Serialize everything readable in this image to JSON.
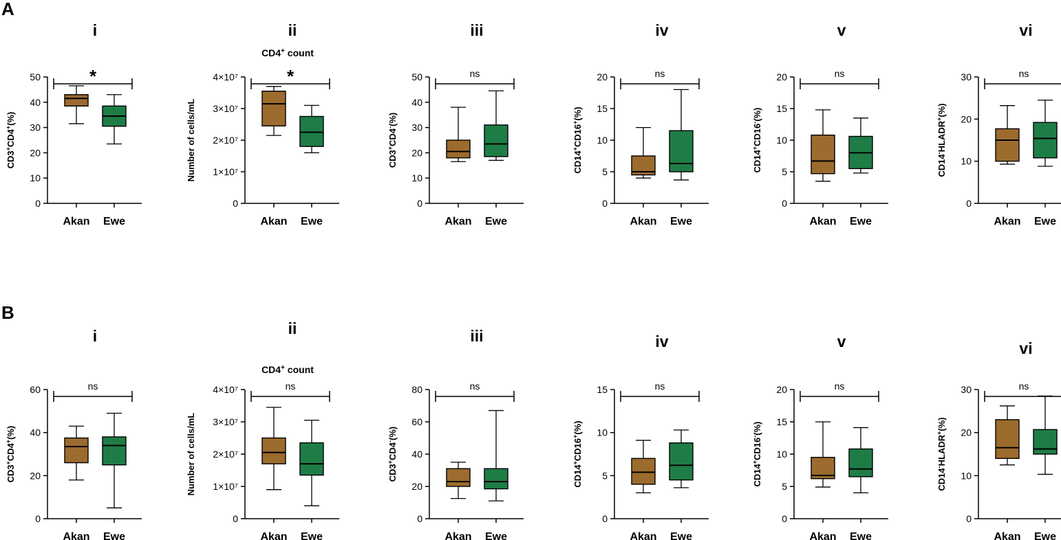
{
  "panel_labels": [
    "A",
    "B"
  ],
  "colors": {
    "Akan": "#9c6b2e",
    "Ewe": "#1e7d46",
    "line": "#000000"
  },
  "chart_data": [
    {
      "panel": "A",
      "subtitle": "i",
      "type": "boxplot",
      "title": "",
      "ylabel": "CD3+CD4+(%)",
      "ylabel_parts": [
        [
          "CD3",
          ""
        ],
        [
          "+",
          "sup"
        ],
        [
          "CD4",
          ""
        ],
        [
          "+",
          "sup"
        ],
        [
          "(%)",
          ""
        ]
      ],
      "ylim": [
        0,
        50
      ],
      "ticks": [
        0,
        10,
        20,
        30,
        40,
        50
      ],
      "tick_labels": [
        "0",
        "10",
        "20",
        "30",
        "40",
        "50"
      ],
      "categories": [
        "Akan",
        "Ewe"
      ],
      "significance": "*",
      "boxes": [
        {
          "min": 31.5,
          "q1": 38.5,
          "median": 41.5,
          "q3": 43,
          "max": 46.5
        },
        {
          "min": 23.5,
          "q1": 30.5,
          "median": 34.5,
          "q3": 38.5,
          "max": 43
        }
      ]
    },
    {
      "panel": "A",
      "subtitle": "ii",
      "type": "boxplot",
      "title": "CD4+ count",
      "title_parts": [
        [
          "CD4",
          ""
        ],
        [
          "+",
          "sup"
        ],
        [
          " count",
          ""
        ]
      ],
      "ylabel": "Number of cells/mL",
      "ylabel_parts": [
        [
          "Number of cells/mL",
          ""
        ]
      ],
      "ylim": [
        0,
        40000000
      ],
      "ticks": [
        0,
        10000000,
        20000000,
        30000000,
        40000000
      ],
      "tick_labels": [
        "0",
        "1×10⁷",
        "2×10⁷",
        "3×10⁷",
        "4×10⁷"
      ],
      "categories": [
        "Akan",
        "Ewe"
      ],
      "significance": "*",
      "boxes": [
        {
          "min": 21500000,
          "q1": 24500000,
          "median": 31500000,
          "q3": 35500000,
          "max": 37000000
        },
        {
          "min": 16000000,
          "q1": 18000000,
          "median": 22500000,
          "q3": 27500000,
          "max": 31000000
        }
      ]
    },
    {
      "panel": "A",
      "subtitle": "iii",
      "type": "boxplot",
      "title": "",
      "ylabel": "CD3+CD4-(%)",
      "ylabel_parts": [
        [
          "CD3",
          ""
        ],
        [
          "+",
          "sup"
        ],
        [
          "CD4",
          ""
        ],
        [
          "-",
          "sup"
        ],
        [
          "(%)",
          ""
        ]
      ],
      "ylim": [
        0,
        50
      ],
      "ticks": [
        0,
        10,
        20,
        30,
        40,
        50
      ],
      "tick_labels": [
        "0",
        "10",
        "20",
        "30",
        "40",
        "50"
      ],
      "categories": [
        "Akan",
        "Ewe"
      ],
      "significance": "ns",
      "boxes": [
        {
          "min": 16.5,
          "q1": 18,
          "median": 20.5,
          "q3": 25,
          "max": 38
        },
        {
          "min": 17,
          "q1": 18.5,
          "median": 23.5,
          "q3": 31,
          "max": 44.5
        }
      ]
    },
    {
      "panel": "A",
      "subtitle": "iv",
      "type": "boxplot",
      "title": "",
      "ylabel": "CD14+CD16+(%)",
      "ylabel_parts": [
        [
          "CD14",
          ""
        ],
        [
          "+",
          "sup"
        ],
        [
          "CD16",
          ""
        ],
        [
          "+",
          "sup"
        ],
        [
          "(%)",
          ""
        ]
      ],
      "ylim": [
        0,
        20
      ],
      "ticks": [
        0,
        5,
        10,
        15,
        20
      ],
      "tick_labels": [
        "0",
        "5",
        "10",
        "15",
        "20"
      ],
      "categories": [
        "Akan",
        "Ewe"
      ],
      "significance": "ns",
      "boxes": [
        {
          "min": 4,
          "q1": 4.5,
          "median": 5,
          "q3": 7.5,
          "max": 12
        },
        {
          "min": 3.7,
          "q1": 5,
          "median": 6.3,
          "q3": 11.5,
          "max": 18
        }
      ]
    },
    {
      "panel": "A",
      "subtitle": "v",
      "type": "boxplot",
      "title": "",
      "ylabel": "CD14+CD16-(%)",
      "ylabel_parts": [
        [
          "CD14",
          ""
        ],
        [
          "+",
          "sup"
        ],
        [
          "CD16",
          ""
        ],
        [
          "-",
          "sup"
        ],
        [
          "(%)",
          ""
        ]
      ],
      "ylim": [
        0,
        20
      ],
      "ticks": [
        0,
        5,
        10,
        15,
        20
      ],
      "tick_labels": [
        "0",
        "5",
        "10",
        "15",
        "20"
      ],
      "categories": [
        "Akan",
        "Ewe"
      ],
      "significance": "ns",
      "boxes": [
        {
          "min": 3.5,
          "q1": 4.7,
          "median": 6.7,
          "q3": 10.8,
          "max": 14.8
        },
        {
          "min": 4.8,
          "q1": 5.5,
          "median": 8,
          "q3": 10.6,
          "max": 13.5
        }
      ]
    },
    {
      "panel": "A",
      "subtitle": "vi",
      "type": "boxplot",
      "title": "",
      "ylabel": "CD14-HLADR+(%)",
      "ylabel_parts": [
        [
          "CD14",
          ""
        ],
        [
          "-",
          "sup"
        ],
        [
          "HLADR",
          ""
        ],
        [
          "+",
          "sup"
        ],
        [
          "(%)",
          ""
        ]
      ],
      "ylim": [
        0,
        30
      ],
      "ticks": [
        0,
        10,
        20,
        30
      ],
      "tick_labels": [
        "0",
        "10",
        "20",
        "30"
      ],
      "categories": [
        "Akan",
        "Ewe"
      ],
      "significance": "ns",
      "boxes": [
        {
          "min": 9.3,
          "q1": 10,
          "median": 15,
          "q3": 17.7,
          "max": 23.2
        },
        {
          "min": 8.8,
          "q1": 10.8,
          "median": 15.4,
          "q3": 19.2,
          "max": 24.5
        }
      ]
    },
    {
      "panel": "B",
      "subtitle": "i",
      "type": "boxplot",
      "title": "",
      "ylabel": "CD3+CD4+(%)",
      "ylabel_parts": [
        [
          "CD3",
          ""
        ],
        [
          "+",
          "sup"
        ],
        [
          "CD4",
          ""
        ],
        [
          "+",
          "sup"
        ],
        [
          "(%)",
          ""
        ]
      ],
      "ylim": [
        0,
        60
      ],
      "ticks": [
        0,
        20,
        40,
        60
      ],
      "tick_labels": [
        "0",
        "20",
        "40",
        "60"
      ],
      "categories": [
        "Akan",
        "Ewe"
      ],
      "significance": "ns",
      "boxes": [
        {
          "min": 18,
          "q1": 26,
          "median": 33.5,
          "q3": 37.5,
          "max": 43
        },
        {
          "min": 5,
          "q1": 25,
          "median": 34,
          "q3": 38,
          "max": 49
        }
      ]
    },
    {
      "panel": "B",
      "subtitle": "ii",
      "type": "boxplot",
      "title": "CD4+ count",
      "title_parts": [
        [
          "CD4",
          ""
        ],
        [
          "+",
          "sup"
        ],
        [
          " count",
          ""
        ]
      ],
      "ylabel": "Number of cells/mL",
      "ylabel_parts": [
        [
          "Number of cells/mL",
          ""
        ]
      ],
      "ylim": [
        0,
        40000000
      ],
      "ticks": [
        0,
        10000000,
        20000000,
        30000000,
        40000000
      ],
      "tick_labels": [
        "0",
        "1×10⁷",
        "2×10⁷",
        "3×10⁷",
        "4×10⁷"
      ],
      "categories": [
        "Akan",
        "Ewe"
      ],
      "significance": "ns",
      "boxes": [
        {
          "min": 9000000,
          "q1": 17000000,
          "median": 20500000,
          "q3": 25000000,
          "max": 34500000
        },
        {
          "min": 4000000,
          "q1": 13500000,
          "median": 17000000,
          "q3": 23500000,
          "max": 30500000
        }
      ]
    },
    {
      "panel": "B",
      "subtitle": "iii",
      "type": "boxplot",
      "title": "",
      "ylabel": "CD3+CD4-(%)",
      "ylabel_parts": [
        [
          "CD3",
          ""
        ],
        [
          "+",
          "sup"
        ],
        [
          "CD4",
          ""
        ],
        [
          "-",
          "sup"
        ],
        [
          "(%)",
          ""
        ]
      ],
      "ylim": [
        0,
        80
      ],
      "ticks": [
        0,
        20,
        40,
        60,
        80
      ],
      "tick_labels": [
        "0",
        "20",
        "40",
        "60",
        "80"
      ],
      "categories": [
        "Akan",
        "Ewe"
      ],
      "significance": "ns",
      "boxes": [
        {
          "min": 12.5,
          "q1": 20,
          "median": 23,
          "q3": 31,
          "max": 35
        },
        {
          "min": 11,
          "q1": 18.5,
          "median": 23,
          "q3": 31,
          "max": 67
        }
      ]
    },
    {
      "panel": "B",
      "subtitle": "iv",
      "type": "boxplot",
      "title": "",
      "ylabel": "CD14+CD16+(%)",
      "ylabel_parts": [
        [
          "CD14",
          ""
        ],
        [
          "+",
          "sup"
        ],
        [
          "CD16",
          ""
        ],
        [
          "+",
          "sup"
        ],
        [
          "(%)",
          ""
        ]
      ],
      "ylim": [
        0,
        15
      ],
      "ticks": [
        0,
        5,
        10,
        15
      ],
      "tick_labels": [
        "0",
        "5",
        "10",
        "15"
      ],
      "categories": [
        "Akan",
        "Ewe"
      ],
      "significance": "ns",
      "boxes": [
        {
          "min": 3,
          "q1": 4,
          "median": 5.4,
          "q3": 7,
          "max": 9.1
        },
        {
          "min": 3.6,
          "q1": 4.5,
          "median": 6.2,
          "q3": 8.8,
          "max": 10.3
        }
      ]
    },
    {
      "panel": "B",
      "subtitle": "v",
      "type": "boxplot",
      "title": "",
      "ylabel": "CD14+CD16-(%)",
      "ylabel_parts": [
        [
          "CD14",
          ""
        ],
        [
          "+",
          "sup"
        ],
        [
          "CD16",
          ""
        ],
        [
          "-",
          "sup"
        ],
        [
          "(%)",
          ""
        ]
      ],
      "ylim": [
        0,
        20
      ],
      "ticks": [
        0,
        5,
        10,
        15,
        20
      ],
      "tick_labels": [
        "0",
        "5",
        "10",
        "15",
        "20"
      ],
      "categories": [
        "Akan",
        "Ewe"
      ],
      "significance": "ns",
      "boxes": [
        {
          "min": 4.9,
          "q1": 6.2,
          "median": 6.7,
          "q3": 9.5,
          "max": 15
        },
        {
          "min": 4,
          "q1": 6.5,
          "median": 7.7,
          "q3": 10.8,
          "max": 14.1
        }
      ]
    },
    {
      "panel": "B",
      "subtitle": "vi",
      "type": "boxplot",
      "title": "",
      "ylabel": "CD14-HLADR+(%)",
      "ylabel_parts": [
        [
          "CD14",
          ""
        ],
        [
          "-",
          "sup"
        ],
        [
          "HLADR",
          ""
        ],
        [
          "+",
          "sup"
        ],
        [
          "(%)",
          ""
        ]
      ],
      "ylim": [
        0,
        30
      ],
      "ticks": [
        0,
        10,
        20,
        30
      ],
      "tick_labels": [
        "0",
        "10",
        "20",
        "30"
      ],
      "categories": [
        "Akan",
        "Ewe"
      ],
      "significance": "ns",
      "boxes": [
        {
          "min": 12.5,
          "q1": 14,
          "median": 16.5,
          "q3": 23,
          "max": 26.2
        },
        {
          "min": 10.3,
          "q1": 15,
          "median": 16.2,
          "q3": 20.7,
          "max": 28.5
        }
      ]
    }
  ]
}
